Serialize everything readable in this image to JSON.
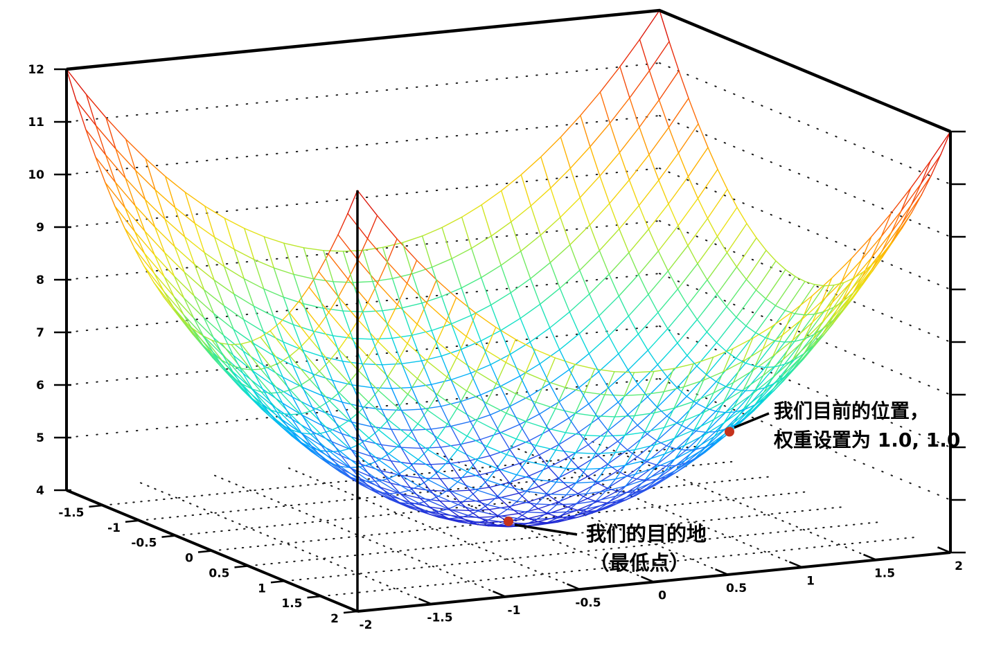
{
  "chart_data": {
    "type": "surface",
    "description": "3D wireframe bowl-shaped error surface (gradient descent illustration)",
    "z_function": "z = x^2 + y^2 + 4",
    "x_range": [
      -2,
      2
    ],
    "y_range": [
      -2,
      2
    ],
    "z_range": [
      4,
      12
    ],
    "mesh_divisions": 30,
    "colormap": "jet",
    "grid": true,
    "x_tick_labels": [
      "-1.5",
      "-1",
      "-0.5",
      "0",
      "0.5",
      "1",
      "1.5",
      "2"
    ],
    "y_tick_labels": [
      "-2",
      "-1.5",
      "-1",
      "-0.5",
      "0",
      "0.5",
      "1",
      "1.5",
      "2"
    ],
    "z_tick_labels": [
      "4",
      "5",
      "6",
      "7",
      "8",
      "9",
      "10",
      "11",
      "12"
    ],
    "wall_grid_z": [
      5,
      6,
      7,
      8,
      9,
      10,
      11
    ],
    "floor_grid_lines": [
      -1.5,
      -1,
      -0.5,
      0,
      0.5,
      1,
      1.5
    ],
    "annotations": [
      {
        "id": "current-position",
        "point": {
          "x": 1,
          "y": 1,
          "z": 6
        },
        "lines": [
          "我们目前的位置，",
          "权重设置为 1.0, 1.0"
        ]
      },
      {
        "id": "destination",
        "point": {
          "x": 0,
          "y": 0,
          "z": 4
        },
        "lines": [
          "我们的目的地",
          "（最低点）"
        ]
      }
    ],
    "marker_color": "#c5331d",
    "frame_color": "#000000",
    "grid_dot_color": "#1a1a1a",
    "annotation_text_color": "#000000"
  }
}
